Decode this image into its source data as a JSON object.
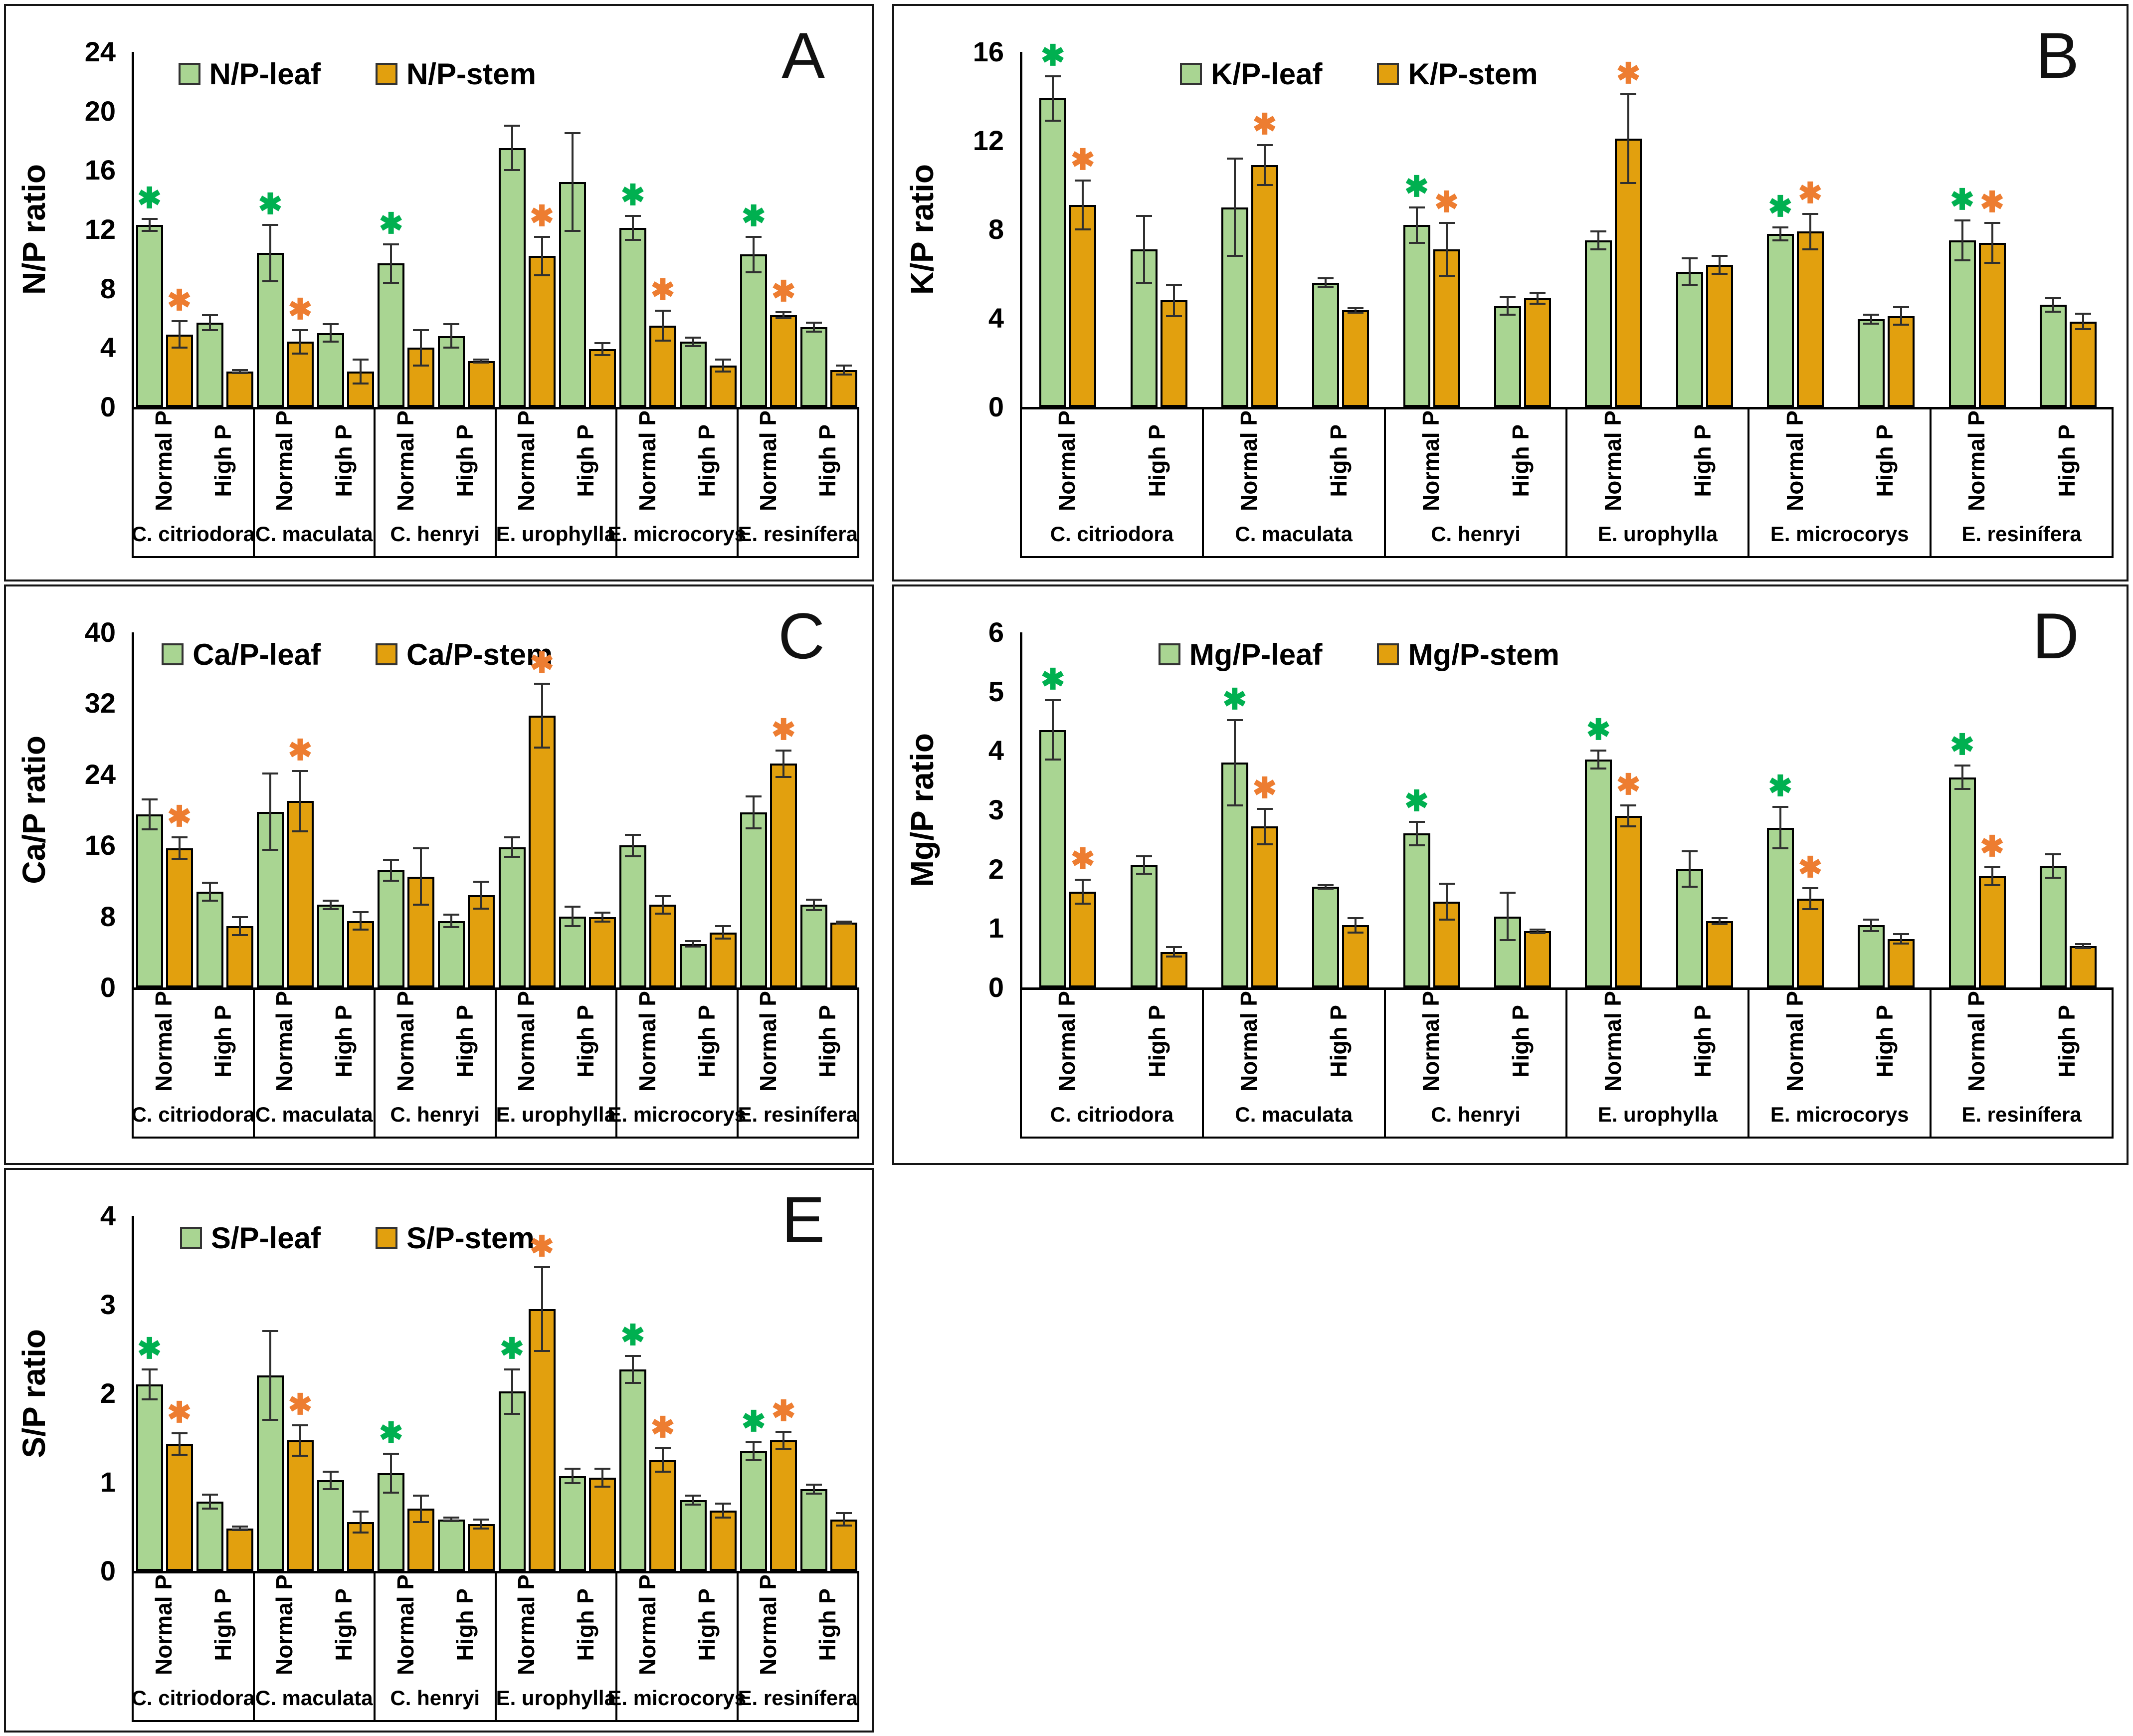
{
  "figure": {
    "description": "Five bar-chart panels (A-E) of nutrient ratios in leaf and stem of six Corymbia/Eucalyptus species under Normal P and High P",
    "species": [
      "C. citriodora",
      "C. maculata",
      "C. henryi",
      "E. urophylla",
      "E. microcorys",
      "E. resinífera"
    ],
    "treatments": [
      "Normal P",
      "High P"
    ],
    "style": {
      "leaf_fill": "#A9D592",
      "stem_fill": "#E2A00E",
      "bar_border": "#000000",
      "error_color": "#2f2f2f",
      "leaf_star_color": "#00B050",
      "stem_star_color": "#ED7D31",
      "star_glyph": "✱"
    }
  },
  "chart_data": [
    {
      "type": "bar",
      "panel_letter": "A",
      "ylabel": "N/P ratio",
      "legend": [
        "N/P-leaf",
        "N/P-stem"
      ],
      "legend_position": "top-center",
      "grid": false,
      "ylim": [
        0,
        24
      ],
      "yticks": [
        0,
        4,
        8,
        12,
        16,
        20,
        24
      ],
      "categories": [
        "C. citriodora",
        "C. maculata",
        "C. henryi",
        "E. urophylla",
        "E. microcorys",
        "E. resinífera"
      ],
      "values": [
        {
          "normal": {
            "leaf": 12.3,
            "leafErr": 0.4,
            "leafStar": true,
            "stem": 4.9,
            "stemErr": 0.9,
            "stemStar": true
          },
          "high": {
            "leaf": 5.7,
            "leafErr": 0.5,
            "leafStar": false,
            "stem": 2.4,
            "stemErr": 0.1,
            "stemStar": false
          }
        },
        {
          "normal": {
            "leaf": 10.4,
            "leafErr": 1.9,
            "leafStar": true,
            "stem": 4.4,
            "stemErr": 0.8,
            "stemStar": true
          },
          "high": {
            "leaf": 5.0,
            "leafErr": 0.6,
            "leafStar": false,
            "stem": 2.4,
            "stemErr": 0.8,
            "stemStar": false
          }
        },
        {
          "normal": {
            "leaf": 9.7,
            "leafErr": 1.3,
            "leafStar": true,
            "stem": 4.0,
            "stemErr": 1.2,
            "stemStar": false
          },
          "high": {
            "leaf": 4.8,
            "leafErr": 0.8,
            "leafStar": false,
            "stem": 3.1,
            "stemErr": 0.1,
            "stemStar": false
          }
        },
        {
          "normal": {
            "leaf": 17.5,
            "leafErr": 1.5,
            "leafStar": false,
            "stem": 10.2,
            "stemErr": 1.3,
            "stemStar": true
          },
          "high": {
            "leaf": 15.2,
            "leafErr": 3.3,
            "leafStar": false,
            "stem": 3.9,
            "stemErr": 0.4,
            "stemStar": false
          }
        },
        {
          "normal": {
            "leaf": 12.1,
            "leafErr": 0.8,
            "leafStar": true,
            "stem": 5.5,
            "stemErr": 1.0,
            "stemStar": true
          },
          "high": {
            "leaf": 4.4,
            "leafErr": 0.3,
            "leafStar": false,
            "stem": 2.8,
            "stemErr": 0.4,
            "stemStar": false
          }
        },
        {
          "normal": {
            "leaf": 10.3,
            "leafErr": 1.2,
            "leafStar": true,
            "stem": 6.2,
            "stemErr": 0.2,
            "stemStar": true
          },
          "high": {
            "leaf": 5.4,
            "leafErr": 0.3,
            "leafStar": false,
            "stem": 2.5,
            "stemErr": 0.3,
            "stemStar": false
          }
        }
      ]
    },
    {
      "type": "bar",
      "panel_letter": "B",
      "ylabel": "K/P ratio",
      "legend": [
        "K/P-leaf",
        "K/P-stem"
      ],
      "legend_position": "top-center",
      "grid": false,
      "ylim": [
        0,
        16
      ],
      "yticks": [
        0,
        4,
        8,
        12,
        16
      ],
      "categories": [
        "C. citriodora",
        "C. maculata",
        "C. henryi",
        "E. urophylla",
        "E. microcorys",
        "E. resinífera"
      ],
      "values": [
        {
          "normal": {
            "leaf": 13.9,
            "leafErr": 1.0,
            "leafStar": true,
            "stem": 9.1,
            "stemErr": 1.1,
            "stemStar": true
          },
          "high": {
            "leaf": 7.1,
            "leafErr": 1.5,
            "leafStar": false,
            "stem": 4.8,
            "stemErr": 0.7,
            "stemStar": false
          }
        },
        {
          "normal": {
            "leaf": 9.0,
            "leafErr": 2.2,
            "leafStar": false,
            "stem": 10.9,
            "stemErr": 0.9,
            "stemStar": true
          },
          "high": {
            "leaf": 5.6,
            "leafErr": 0.2,
            "leafStar": false,
            "stem": 4.35,
            "stemErr": 0.1,
            "stemStar": false
          }
        },
        {
          "normal": {
            "leaf": 8.2,
            "leafErr": 0.8,
            "leafStar": true,
            "stem": 7.1,
            "stemErr": 1.2,
            "stemStar": true
          },
          "high": {
            "leaf": 4.55,
            "leafErr": 0.4,
            "leafStar": false,
            "stem": 4.9,
            "stemErr": 0.25,
            "stemStar": false
          }
        },
        {
          "normal": {
            "leaf": 7.5,
            "leafErr": 0.4,
            "leafStar": false,
            "stem": 12.1,
            "stemErr": 2.0,
            "stemStar": true
          },
          "high": {
            "leaf": 6.1,
            "leafErr": 0.6,
            "leafStar": false,
            "stem": 6.4,
            "stemErr": 0.4,
            "stemStar": false
          }
        },
        {
          "normal": {
            "leaf": 7.8,
            "leafErr": 0.3,
            "leafStar": true,
            "stem": 7.9,
            "stemErr": 0.8,
            "stemStar": true
          },
          "high": {
            "leaf": 3.95,
            "leafErr": 0.2,
            "leafStar": false,
            "stem": 4.1,
            "stemErr": 0.4,
            "stemStar": false
          }
        },
        {
          "normal": {
            "leaf": 7.5,
            "leafErr": 0.9,
            "leafStar": true,
            "stem": 7.4,
            "stemErr": 0.9,
            "stemStar": true
          },
          "high": {
            "leaf": 4.6,
            "leafErr": 0.3,
            "leafStar": false,
            "stem": 3.85,
            "stemErr": 0.35,
            "stemStar": false
          }
        }
      ]
    },
    {
      "type": "bar",
      "panel_letter": "C",
      "ylabel": "Ca/P ratio",
      "legend": [
        "Ca/P-leaf",
        "Ca/P-stem"
      ],
      "legend_position": "top-center",
      "grid": false,
      "ylim": [
        0,
        40
      ],
      "yticks": [
        0,
        8,
        16,
        24,
        32,
        40
      ],
      "categories": [
        "C. citriodora",
        "C. maculata",
        "C. henryi",
        "E. urophylla",
        "E. microcorys",
        "E. resinífera"
      ],
      "values": [
        {
          "normal": {
            "leaf": 19.5,
            "leafErr": 1.7,
            "leafStar": false,
            "stem": 15.7,
            "stemErr": 1.2,
            "stemStar": true
          },
          "high": {
            "leaf": 10.8,
            "leafErr": 1.0,
            "leafStar": false,
            "stem": 6.9,
            "stemErr": 1.0,
            "stemStar": false
          }
        },
        {
          "normal": {
            "leaf": 19.8,
            "leafErr": 4.3,
            "leafStar": false,
            "stem": 21.0,
            "stemErr": 3.4,
            "stemStar": true
          },
          "high": {
            "leaf": 9.3,
            "leafErr": 0.5,
            "leafStar": false,
            "stem": 7.5,
            "stemErr": 1.0,
            "stemStar": false
          }
        },
        {
          "normal": {
            "leaf": 13.2,
            "leafErr": 1.2,
            "leafStar": false,
            "stem": 12.5,
            "stemErr": 3.2,
            "stemStar": false
          },
          "high": {
            "leaf": 7.5,
            "leafErr": 0.7,
            "leafStar": false,
            "stem": 10.4,
            "stemErr": 1.5,
            "stemStar": false
          }
        },
        {
          "normal": {
            "leaf": 15.8,
            "leafErr": 1.1,
            "leafStar": false,
            "stem": 30.6,
            "stemErr": 3.6,
            "stemStar": true
          },
          "high": {
            "leaf": 8.0,
            "leafErr": 1.1,
            "leafStar": false,
            "stem": 7.9,
            "stemErr": 0.5,
            "stemStar": false
          }
        },
        {
          "normal": {
            "leaf": 16.0,
            "leafErr": 1.2,
            "leafStar": false,
            "stem": 9.3,
            "stemErr": 1.0,
            "stemStar": false
          },
          "high": {
            "leaf": 4.9,
            "leafErr": 0.3,
            "leafStar": false,
            "stem": 6.2,
            "stemErr": 0.7,
            "stemStar": false
          }
        },
        {
          "normal": {
            "leaf": 19.7,
            "leafErr": 1.8,
            "leafStar": false,
            "stem": 25.2,
            "stemErr": 1.5,
            "stemStar": true
          },
          "high": {
            "leaf": 9.3,
            "leafErr": 0.6,
            "leafStar": false,
            "stem": 7.3,
            "stemErr": 0.1,
            "stemStar": false
          }
        }
      ]
    },
    {
      "type": "bar",
      "panel_letter": "D",
      "ylabel": "Mg/P ratio",
      "legend": [
        "Mg/P-leaf",
        "Mg/P-stem"
      ],
      "legend_position": "top-center",
      "grid": false,
      "ylim": [
        0,
        6
      ],
      "yticks": [
        0,
        1,
        2,
        3,
        4,
        5,
        6
      ],
      "categories": [
        "C. citriodora",
        "C. maculata",
        "C. henryi",
        "E. urophylla",
        "E. microcorys",
        "E. resinífera"
      ],
      "values": [
        {
          "normal": {
            "leaf": 4.35,
            "leafErr": 0.5,
            "leafStar": true,
            "stem": 1.62,
            "stemErr": 0.2,
            "stemStar": true
          },
          "high": {
            "leaf": 2.07,
            "leafErr": 0.15,
            "leafStar": false,
            "stem": 0.6,
            "stemErr": 0.08,
            "stemStar": false
          }
        },
        {
          "normal": {
            "leaf": 3.8,
            "leafErr": 0.72,
            "leafStar": true,
            "stem": 2.72,
            "stemErr": 0.3,
            "stemStar": true
          },
          "high": {
            "leaf": 1.7,
            "leafErr": 0.03,
            "leafStar": false,
            "stem": 1.05,
            "stemErr": 0.12,
            "stemStar": false
          }
        },
        {
          "normal": {
            "leaf": 2.6,
            "leafErr": 0.2,
            "leafStar": true,
            "stem": 1.45,
            "stemErr": 0.3,
            "stemStar": false
          },
          "high": {
            "leaf": 1.2,
            "leafErr": 0.4,
            "leafStar": false,
            "stem": 0.95,
            "stemErr": 0.03,
            "stemStar": false
          }
        },
        {
          "normal": {
            "leaf": 3.85,
            "leafErr": 0.15,
            "leafStar": true,
            "stem": 2.9,
            "stemErr": 0.18,
            "stemStar": true
          },
          "high": {
            "leaf": 2.0,
            "leafErr": 0.3,
            "leafStar": false,
            "stem": 1.12,
            "stemErr": 0.05,
            "stemStar": false
          }
        },
        {
          "normal": {
            "leaf": 2.7,
            "leafErr": 0.35,
            "leafStar": true,
            "stem": 1.5,
            "stemErr": 0.18,
            "stemStar": true
          },
          "high": {
            "leaf": 1.05,
            "leafErr": 0.1,
            "leafStar": false,
            "stem": 0.82,
            "stemErr": 0.08,
            "stemStar": false
          }
        },
        {
          "normal": {
            "leaf": 3.55,
            "leafErr": 0.2,
            "leafStar": true,
            "stem": 1.88,
            "stemErr": 0.15,
            "stemStar": true
          },
          "high": {
            "leaf": 2.05,
            "leafErr": 0.2,
            "leafStar": false,
            "stem": 0.7,
            "stemErr": 0.03,
            "stemStar": false
          }
        }
      ]
    },
    {
      "type": "bar",
      "panel_letter": "E",
      "ylabel": "S/P ratio",
      "legend": [
        "S/P-leaf",
        "S/P-stem"
      ],
      "legend_position": "top-center",
      "grid": false,
      "ylim": [
        0,
        4
      ],
      "yticks": [
        0,
        1,
        2,
        3,
        4
      ],
      "categories": [
        "C. citriodora",
        "C. maculata",
        "C. henryi",
        "E. urophylla",
        "E. microcorys",
        "E. resinífera"
      ],
      "values": [
        {
          "normal": {
            "leaf": 2.1,
            "leafErr": 0.17,
            "leafStar": true,
            "stem": 1.43,
            "stemErr": 0.12,
            "stemStar": true
          },
          "high": {
            "leaf": 0.78,
            "leafErr": 0.08,
            "leafStar": false,
            "stem": 0.48,
            "stemErr": 0.02,
            "stemStar": false
          }
        },
        {
          "normal": {
            "leaf": 2.2,
            "leafErr": 0.5,
            "leafStar": false,
            "stem": 1.47,
            "stemErr": 0.17,
            "stemStar": true
          },
          "high": {
            "leaf": 1.02,
            "leafErr": 0.1,
            "leafStar": false,
            "stem": 0.55,
            "stemErr": 0.12,
            "stemStar": false
          }
        },
        {
          "normal": {
            "leaf": 1.1,
            "leafErr": 0.22,
            "leafStar": true,
            "stem": 0.7,
            "stemErr": 0.15,
            "stemStar": false
          },
          "high": {
            "leaf": 0.58,
            "leafErr": 0.02,
            "leafStar": false,
            "stem": 0.53,
            "stemErr": 0.05,
            "stemStar": false
          }
        },
        {
          "normal": {
            "leaf": 2.02,
            "leafErr": 0.25,
            "leafStar": true,
            "stem": 2.95,
            "stemErr": 0.47,
            "stemStar": true
          },
          "high": {
            "leaf": 1.07,
            "leafErr": 0.08,
            "leafStar": false,
            "stem": 1.05,
            "stemErr": 0.1,
            "stemStar": false
          }
        },
        {
          "normal": {
            "leaf": 2.27,
            "leafErr": 0.15,
            "leafStar": true,
            "stem": 1.25,
            "stemErr": 0.13,
            "stemStar": true
          },
          "high": {
            "leaf": 0.8,
            "leafErr": 0.05,
            "leafStar": false,
            "stem": 0.68,
            "stemErr": 0.08,
            "stemStar": false
          }
        },
        {
          "normal": {
            "leaf": 1.35,
            "leafErr": 0.1,
            "leafStar": true,
            "stem": 1.47,
            "stemErr": 0.1,
            "stemStar": true
          },
          "high": {
            "leaf": 0.92,
            "leafErr": 0.05,
            "leafStar": false,
            "stem": 0.58,
            "stemErr": 0.07,
            "stemStar": false
          }
        }
      ]
    }
  ]
}
